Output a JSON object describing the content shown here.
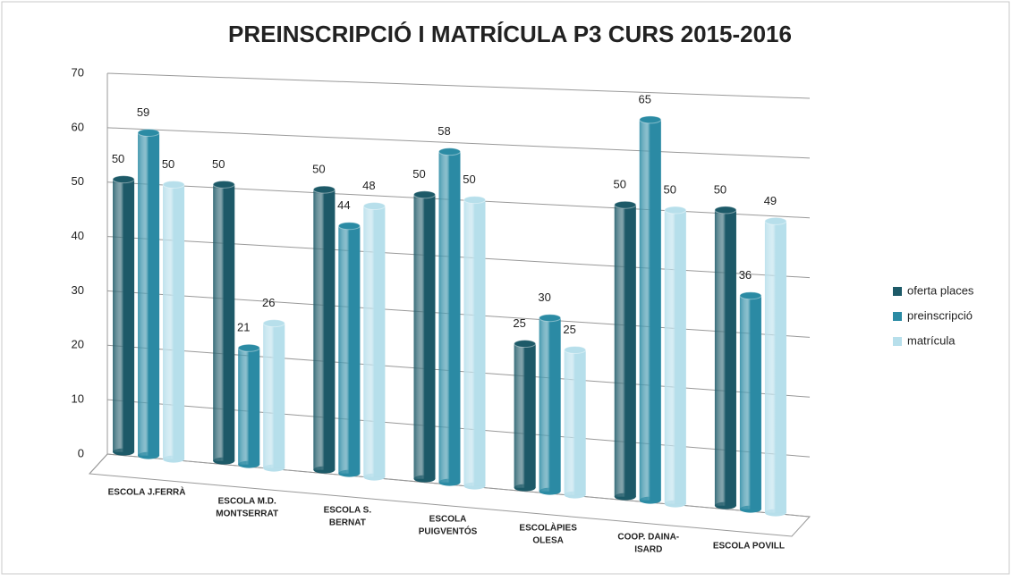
{
  "chart_data": {
    "type": "bar",
    "title": "PREINSCRIPCIÓ I MATRÍCULA P3 CURS 2015-2016",
    "categories": [
      [
        "ESCOLA  J.FERRÀ"
      ],
      [
        "ESCOLA M.D.",
        "MONTSERRAT"
      ],
      [
        "ESCOLA S.",
        "BERNAT"
      ],
      [
        "ESCOLA",
        "PUIGVENTÓS"
      ],
      [
        "ESCOLÀPIES",
        "OLESA"
      ],
      [
        "COOP. DAINA-",
        "ISARD"
      ],
      [
        "ESCOLA POVILL"
      ]
    ],
    "series": [
      {
        "name": "oferta places",
        "color": "#1d5a68",
        "values": [
          50,
          50,
          50,
          50,
          25,
          50,
          50
        ]
      },
      {
        "name": "preinscripció",
        "color": "#2b8ba4",
        "values": [
          59,
          21,
          44,
          58,
          30,
          65,
          36
        ]
      },
      {
        "name": "matrícula",
        "color": "#b7dfeb",
        "values": [
          50,
          26,
          48,
          50,
          25,
          50,
          49
        ]
      }
    ],
    "ylim": [
      0,
      70
    ],
    "yticks": [
      0,
      10,
      20,
      30,
      40,
      50,
      60,
      70
    ],
    "grid": true,
    "legend": "right"
  }
}
